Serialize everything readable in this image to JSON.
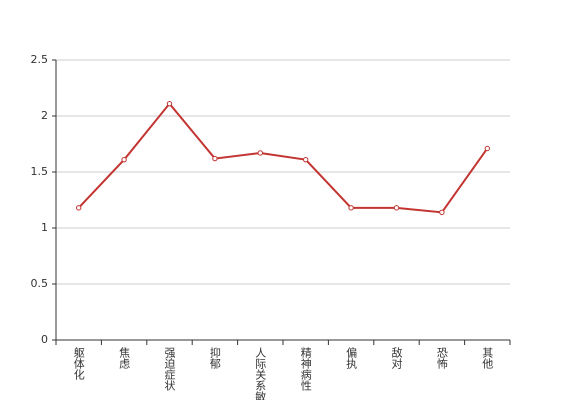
{
  "chart_data": {
    "type": "line",
    "categories": [
      "躯体化",
      "焦虑",
      "强迫症状",
      "抑郁",
      "人际关系敏感",
      "精神病性",
      "偏执",
      "敌对",
      "恐怖",
      "其他"
    ],
    "series": [
      {
        "color": "#c23531",
        "values": [
          1.18,
          1.61,
          2.11,
          1.62,
          1.67,
          1.61,
          1.18,
          1.18,
          1.14,
          1.71
        ]
      }
    ],
    "ylim": [
      0,
      2.5
    ],
    "yticks": [
      0,
      0.5,
      1,
      1.5,
      2,
      2.5
    ],
    "grid": true
  }
}
